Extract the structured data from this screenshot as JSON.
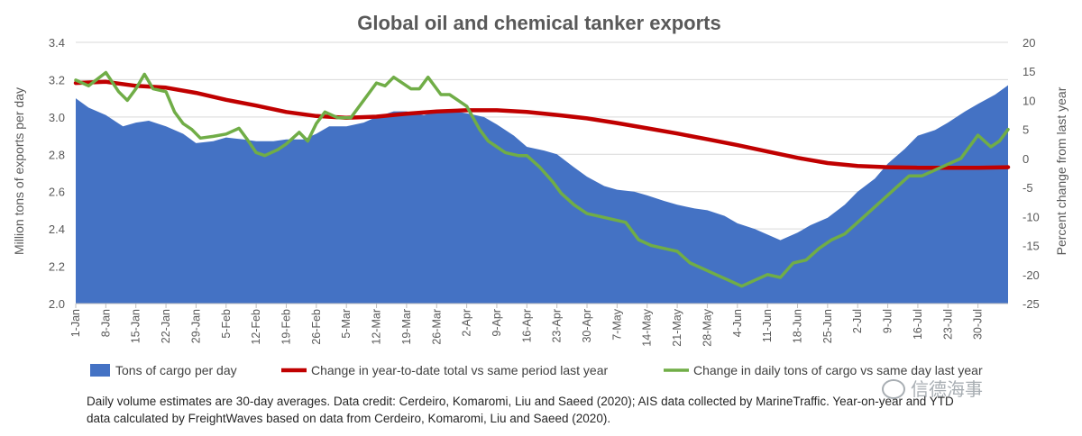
{
  "chart_data": {
    "type": "area",
    "title": "Global oil and chemical tanker exports",
    "ylabel": "Million tons of exports per day",
    "y2label": "Percent change from last year",
    "ylim": [
      2.0,
      3.4
    ],
    "y2lim": [
      -25,
      20
    ],
    "yticks": [
      "2.0",
      "2.2",
      "2.4",
      "2.6",
      "2.8",
      "3.0",
      "3.2",
      "3.4"
    ],
    "y2ticks": [
      "-25",
      "-20",
      "-15",
      "-10",
      "-5",
      "0",
      "5",
      "10",
      "15",
      "20"
    ],
    "x_tick_labels": [
      "1-Jan",
      "8-Jan",
      "15-Jan",
      "22-Jan",
      "29-Jan",
      "5-Feb",
      "12-Feb",
      "19-Feb",
      "26-Feb",
      "5-Mar",
      "12-Mar",
      "19-Mar",
      "26-Mar",
      "2-Apr",
      "9-Apr",
      "16-Apr",
      "23-Apr",
      "30-Apr",
      "7-May",
      "14-May",
      "21-May",
      "28-May",
      "4-Jun",
      "11-Jun",
      "18-Jun",
      "25-Jun",
      "2-Jul",
      "9-Jul",
      "16-Jul",
      "23-Jul",
      "30-Jul"
    ],
    "x_days": [
      1,
      8,
      15,
      22,
      29,
      36,
      43,
      50,
      57,
      64,
      71,
      78,
      85,
      92,
      99,
      106,
      113,
      120,
      127,
      134,
      141,
      148,
      155,
      162,
      169,
      176,
      183,
      190,
      197,
      204,
      211
    ],
    "x_range_days": [
      1,
      218
    ],
    "series": [
      {
        "name": "Tons of cargo per day",
        "axis": "left",
        "color": "#4472c4",
        "x": [
          1,
          4,
          8,
          12,
          15,
          18,
          22,
          26,
          29,
          33,
          36,
          40,
          43,
          47,
          50,
          54,
          57,
          60,
          64,
          68,
          71,
          75,
          78,
          82,
          85,
          89,
          92,
          96,
          99,
          103,
          106,
          110,
          113,
          117,
          120,
          124,
          127,
          131,
          134,
          138,
          141,
          145,
          148,
          152,
          155,
          159,
          162,
          165,
          169,
          172,
          176,
          180,
          183,
          187,
          190,
          194,
          197,
          201,
          204,
          208,
          211,
          215,
          218
        ],
        "values": [
          3.1,
          3.05,
          3.01,
          2.95,
          2.97,
          2.98,
          2.95,
          2.91,
          2.86,
          2.87,
          2.89,
          2.88,
          2.87,
          2.87,
          2.88,
          2.88,
          2.91,
          2.95,
          2.95,
          2.97,
          3.0,
          3.03,
          3.03,
          3.01,
          3.03,
          3.03,
          3.02,
          3.0,
          2.96,
          2.9,
          2.84,
          2.82,
          2.8,
          2.73,
          2.68,
          2.63,
          2.61,
          2.6,
          2.58,
          2.55,
          2.53,
          2.51,
          2.5,
          2.47,
          2.43,
          2.4,
          2.37,
          2.34,
          2.38,
          2.42,
          2.46,
          2.53,
          2.6,
          2.67,
          2.75,
          2.83,
          2.9,
          2.93,
          2.97,
          3.03,
          3.07,
          3.12,
          3.17
        ]
      },
      {
        "name": "Change in year-to-date total vs same period last year",
        "axis": "right",
        "color": "#c00000",
        "x": [
          1,
          8,
          15,
          22,
          29,
          36,
          43,
          50,
          57,
          64,
          71,
          78,
          85,
          92,
          99,
          106,
          113,
          120,
          127,
          134,
          141,
          148,
          155,
          162,
          169,
          176,
          183,
          190,
          197,
          204,
          211,
          218
        ],
        "values": [
          13,
          13.2,
          12.5,
          12.2,
          11.3,
          10.1,
          9.1,
          8,
          7.3,
          7.0,
          7.2,
          7.7,
          8.1,
          8.3,
          8.3,
          8.0,
          7.5,
          6.9,
          6.1,
          5.2,
          4.3,
          3.3,
          2.3,
          1.2,
          0.1,
          -0.8,
          -1.3,
          -1.5,
          -1.6,
          -1.6,
          -1.6,
          -1.5
        ]
      },
      {
        "name": "Change in daily tons of cargo vs same day last year",
        "axis": "right",
        "color": "#70ad47",
        "x": [
          1,
          4,
          8,
          11,
          13,
          15,
          17,
          19,
          22,
          24,
          26,
          28,
          30,
          33,
          36,
          39,
          41,
          43,
          45,
          48,
          50,
          53,
          55,
          57,
          59,
          62,
          65,
          68,
          71,
          73,
          75,
          77,
          79,
          81,
          83,
          86,
          88,
          90,
          92,
          95,
          97,
          99,
          101,
          104,
          106,
          109,
          112,
          114,
          117,
          120,
          123,
          126,
          129,
          132,
          135,
          138,
          141,
          144,
          147,
          150,
          153,
          156,
          159,
          162,
          165,
          168,
          171,
          174,
          177,
          180,
          183,
          186,
          189,
          192,
          195,
          198,
          201,
          204,
          207,
          209,
          211,
          214,
          216,
          218
        ],
        "values": [
          13.5,
          12.5,
          14.8,
          11.5,
          10,
          12,
          14.5,
          12,
          11.5,
          8,
          6,
          5,
          3.5,
          3.8,
          4.2,
          5.2,
          3.2,
          1,
          0.5,
          1.5,
          2.5,
          4.5,
          3.0,
          6,
          8,
          7,
          7,
          10,
          13,
          12.5,
          14,
          13,
          12,
          12,
          14,
          11,
          11,
          10,
          9,
          5,
          3,
          2,
          1,
          0.5,
          0.5,
          -1.5,
          -4,
          -6,
          -8,
          -9.5,
          -10,
          -10.5,
          -11,
          -14,
          -15,
          -15.5,
          -16,
          -18,
          -19,
          -20,
          -21,
          -22,
          -21,
          -20,
          -20.5,
          -18,
          -17.5,
          -15.5,
          -14,
          -13,
          -11,
          -9,
          -7,
          -5,
          -3,
          -3,
          -2,
          -1,
          0,
          2,
          4,
          2,
          3,
          5
        ]
      }
    ],
    "legend_position": "bottom",
    "grid": "horizontal"
  },
  "footnote": {
    "line1": "Daily volume estimates are 30-day averages. Data credit: Cerdeiro, Komaromi, Liu and Saeed (2020); AIS data collected by MarineTraffic. Year-on-year and YTD",
    "line2": "data calculated by FreightWaves based on data from Cerdeiro, Komaromi, Liu and Saeed (2020)."
  },
  "watermark": {
    "text": "信德海事"
  }
}
